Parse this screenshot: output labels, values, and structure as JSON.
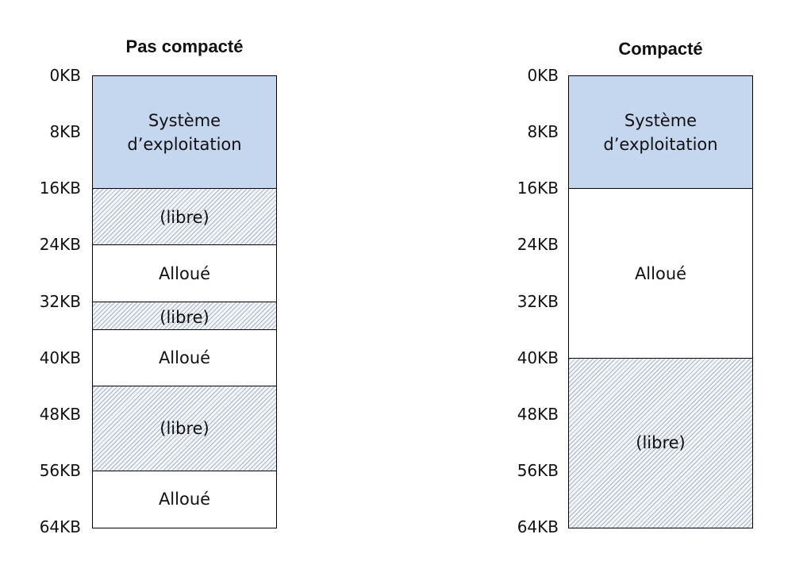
{
  "diagrams": [
    {
      "title": "Pas compacté",
      "blocks": [
        {
          "kind": "os",
          "label": "Système\nd’exploitation",
          "start_kb": 0,
          "end_kb": 16
        },
        {
          "kind": "free",
          "label": "(libre)",
          "start_kb": 16,
          "end_kb": 24
        },
        {
          "kind": "allocated",
          "label": "Alloué",
          "start_kb": 24,
          "end_kb": 32
        },
        {
          "kind": "free",
          "label": "(libre)",
          "start_kb": 32,
          "end_kb": 36
        },
        {
          "kind": "allocated",
          "label": "Alloué",
          "start_kb": 36,
          "end_kb": 44
        },
        {
          "kind": "free",
          "label": "(libre)",
          "start_kb": 44,
          "end_kb": 56
        },
        {
          "kind": "allocated",
          "label": "Alloué",
          "start_kb": 56,
          "end_kb": 64
        }
      ]
    },
    {
      "title": "Compacté",
      "blocks": [
        {
          "kind": "os",
          "label": "Système\nd’exploitation",
          "start_kb": 0,
          "end_kb": 16
        },
        {
          "kind": "allocated",
          "label": "Alloué",
          "start_kb": 16,
          "end_kb": 40
        },
        {
          "kind": "free",
          "label": "(libre)",
          "start_kb": 40,
          "end_kb": 64
        }
      ]
    }
  ],
  "ticks": [
    "0KB",
    "8KB",
    "16KB",
    "24KB",
    "32KB",
    "40KB",
    "48KB",
    "56KB",
    "64KB"
  ],
  "colors": {
    "os": "#c5d7ee",
    "free_hatch": "#aab5c4",
    "allocated": "#ffffff",
    "border": "#000000"
  }
}
